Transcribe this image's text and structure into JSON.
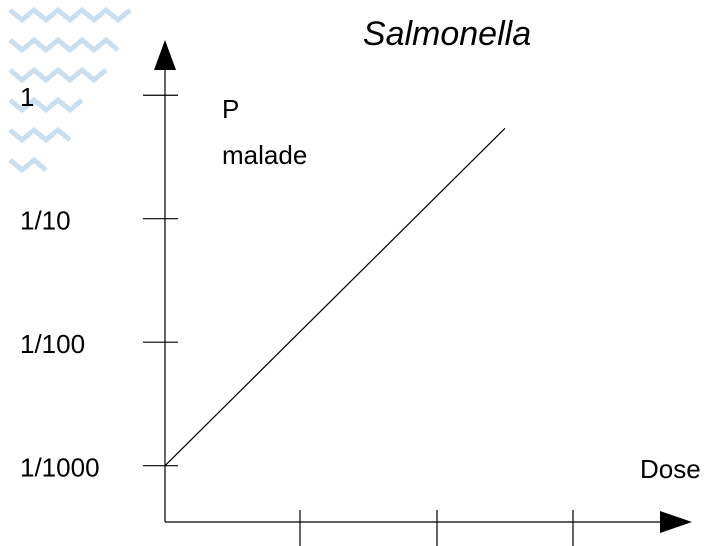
{
  "chart_data": {
    "type": "line",
    "title": "Salmonella",
    "y_label_lines": [
      "P",
      "malade"
    ],
    "x_label": "Dose",
    "log_y": true,
    "color": "#000000",
    "x": [
      0,
      2.5
    ],
    "values": [
      0.001,
      0.54
    ],
    "xlim": [
      0,
      3.875
    ],
    "ylim": [
      0.00035,
      2.8
    ],
    "yticks": [
      {
        "value": 0.001,
        "label": "1/1000"
      },
      {
        "value": 0.01,
        "label": "1/100"
      },
      {
        "value": 0.1,
        "label": "1/10"
      },
      1
    ]
  }
}
